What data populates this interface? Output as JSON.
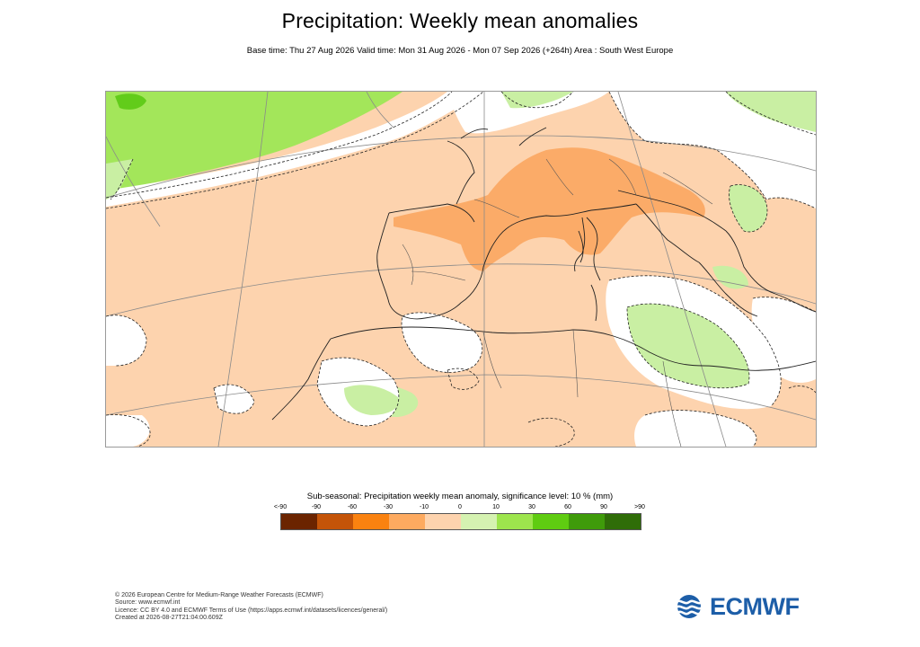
{
  "header": {
    "title": "Precipitation: Weekly mean anomalies",
    "subtitle": "Base time: Thu 27 Aug 2026 Valid time: Mon 31 Aug 2026 - Mon 07 Sep 2026 (+264h) Area : South West Europe"
  },
  "map": {
    "area": "South West Europe",
    "land_color": "#fbd3ae",
    "coast_color": "#222222",
    "border_color": "#555555",
    "graticule_color": "#8a8a8a",
    "significance_contour": "dashed"
  },
  "legend": {
    "title": "Sub-seasonal: Precipitation weekly mean anomaly, significance level: 10 % (mm)",
    "tick_labels": [
      "<-90",
      "-90",
      "-60",
      "-30",
      "-10",
      "0",
      "10",
      "30",
      "60",
      "90",
      ">90"
    ],
    "colors": [
      "#6b2400",
      "#c45408",
      "#fa8210",
      "#fdaa60",
      "#fdd3ae",
      "#d5f2b1",
      "#9de54d",
      "#5fcc11",
      "#3f9b0a",
      "#2f6d08"
    ]
  },
  "footer": {
    "lines": [
      "© 2026 European Centre for Medium-Range Weather Forecasts (ECMWF)",
      "Source: www.ecmwf.int",
      "Licence: CC BY 4.0 and ECMWF Terms of Use (https://apps.ecmwf.int/datasets/licences/general/)",
      "Created at 2026-08-27T21:04:00.609Z"
    ]
  },
  "logo": {
    "text": "ECMWF",
    "color": "#1d5ea8"
  }
}
